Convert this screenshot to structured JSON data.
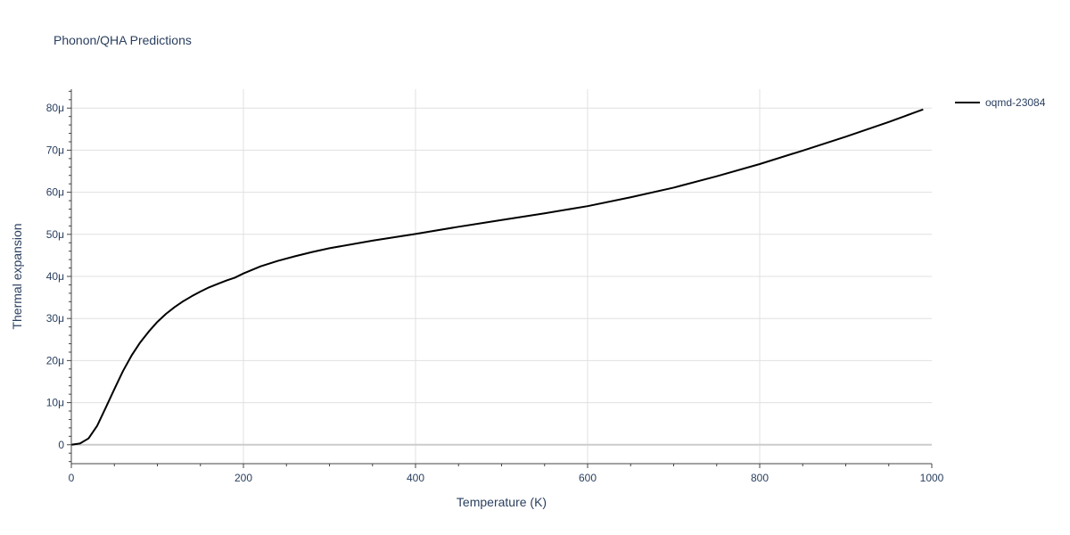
{
  "chart_data": {
    "type": "line",
    "title": "Phonon/QHA Predictions",
    "xlabel": "Temperature (K)",
    "ylabel": "Thermal expansion",
    "xlim": [
      0,
      1000
    ],
    "ylim": [
      -4.5e-06,
      8.45e-05
    ],
    "x_ticks": [
      0,
      200,
      400,
      600,
      800,
      1000
    ],
    "x_tick_labels": [
      "0",
      "200",
      "400",
      "600",
      "800",
      "1000"
    ],
    "y_ticks": [
      0,
      1e-05,
      2e-05,
      3e-05,
      4e-05,
      5e-05,
      6e-05,
      7e-05,
      8e-05
    ],
    "y_tick_labels": [
      "0",
      "10μ",
      "20μ",
      "30μ",
      "40μ",
      "50μ",
      "60μ",
      "70μ",
      "80μ"
    ],
    "grid": true,
    "legend_position": "top-right",
    "line_color": "#000000",
    "series": [
      {
        "name": "oqmd-23084",
        "x": [
          0,
          10,
          20,
          30,
          40,
          50,
          60,
          70,
          80,
          90,
          100,
          110,
          120,
          130,
          140,
          150,
          160,
          170,
          180,
          190,
          200,
          220,
          240,
          260,
          280,
          300,
          350,
          400,
          450,
          500,
          550,
          600,
          650,
          700,
          750,
          800,
          850,
          900,
          950,
          990
        ],
        "y": [
          0,
          3e-07,
          1.5e-06,
          4.5e-06,
          8.8e-06,
          1.32e-05,
          1.75e-05,
          2.12e-05,
          2.43e-05,
          2.69e-05,
          2.92e-05,
          3.11e-05,
          3.27e-05,
          3.41e-05,
          3.53e-05,
          3.64e-05,
          3.74e-05,
          3.82e-05,
          3.9e-05,
          3.97e-05,
          4.07e-05,
          4.24e-05,
          4.37e-05,
          4.48e-05,
          4.58e-05,
          4.67e-05,
          4.85e-05,
          5.01e-05,
          5.18e-05,
          5.34e-05,
          5.5e-05,
          5.67e-05,
          5.88e-05,
          6.11e-05,
          6.38e-05,
          6.67e-05,
          6.99e-05,
          7.32e-05,
          7.67e-05,
          7.97e-05
        ]
      }
    ]
  }
}
